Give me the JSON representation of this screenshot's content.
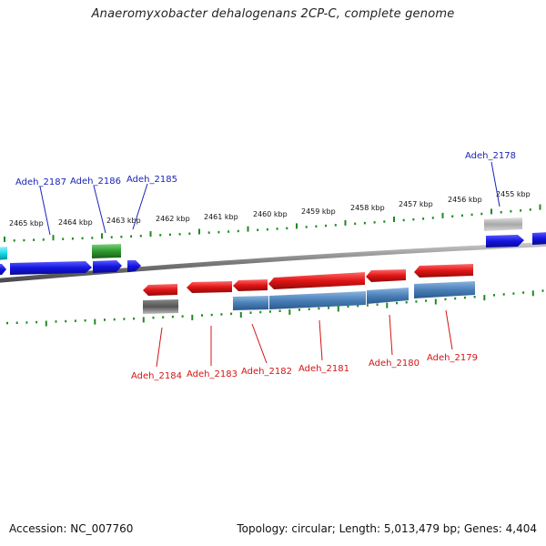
{
  "title": "Anaeromyxobacter dehalogenans 2CP-C, complete genome",
  "footer": {
    "accession": "Accession: NC_007760",
    "summary": "Topology: circular; Length: 5,013,479 bp; Genes: 4,404"
  },
  "scale_labels": [
    "2465 kbp",
    "2464 kbp",
    "2463 kbp",
    "2462 kbp",
    "2461 kbp",
    "2460 kbp",
    "2459 kbp",
    "2458 kbp",
    "2457 kbp",
    "2456 kbp",
    "2455 kbp"
  ],
  "gene_labels_top": [
    "Adeh_2187",
    "Adeh_2186",
    "Adeh_2185",
    "Adeh_2178"
  ],
  "gene_labels_bottom": [
    "Adeh_2184",
    "Adeh_2183",
    "Adeh_2182",
    "Adeh_2181",
    "Adeh_2180",
    "Adeh_2179"
  ],
  "colors": {
    "forward_gene": "#1414e0",
    "reverse_gene": "#e01414",
    "cds_blue": "#4a80b8",
    "rna_green": "#2e9a2e",
    "cyan_gene": "#18d8e8",
    "grey_gene": "#a8a8a8",
    "dark_gene": "#555555",
    "tick_green": "#1e8a1e",
    "backbone": "#7a7a7a",
    "label_blue": "#1a24b8",
    "label_red": "#d41414"
  }
}
